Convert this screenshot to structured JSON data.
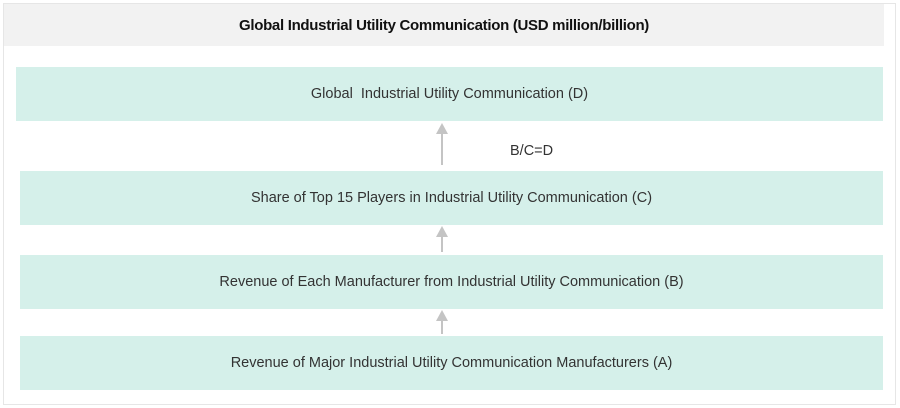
{
  "title": "Global Industrial Utility Communication (USD million/billion)",
  "boxes": {
    "d": "Global  Industrial Utility Communication (D)",
    "c": "Share of Top 15 Players in Industrial Utility Communication (C)",
    "b": "Revenue of Each Manufacturer from Industrial Utility Communication (B)",
    "a": "Revenue of Major Industrial Utility Communication Manufacturers (A)"
  },
  "formula": "B/C=D",
  "colors": {
    "box": "#d5f0ea",
    "header": "#f2f2f2",
    "arrow": "#c4c4c4"
  }
}
